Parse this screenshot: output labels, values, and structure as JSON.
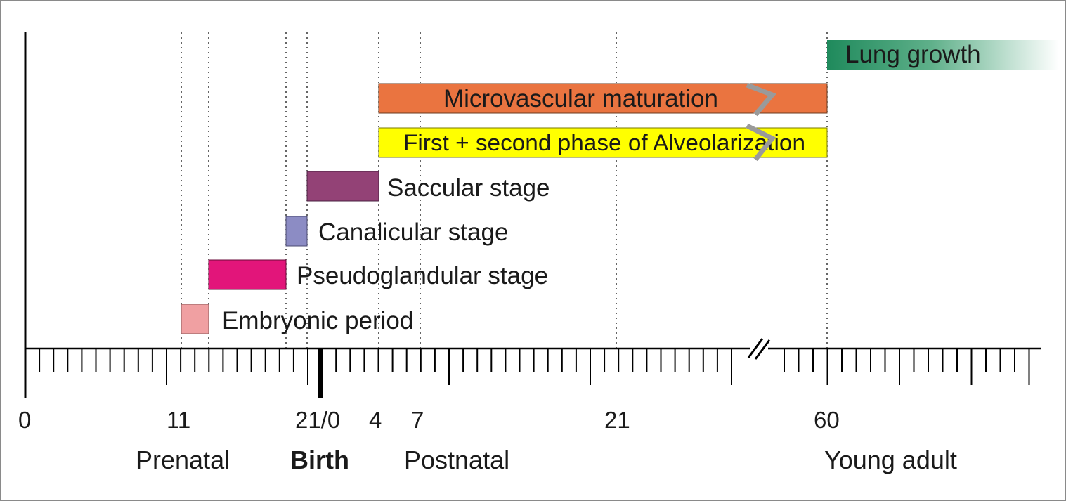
{
  "stages": [
    {
      "id": "lung-growth",
      "label": "Lung growth",
      "color": "#1f8a5c"
    },
    {
      "id": "microvascular",
      "label": "Microvascular maturation",
      "color": "#ea7440"
    },
    {
      "id": "alveolarization",
      "label": "First + second phase of Alveolarization",
      "color": "#ffff00"
    },
    {
      "id": "saccular",
      "label": "Saccular stage",
      "color": "#934276"
    },
    {
      "id": "canalicular",
      "label": "Canalicular stage",
      "color": "#8c8cc4"
    },
    {
      "id": "pseudoglandular",
      "label": "Pseudoglandular stage",
      "color": "#e2157a"
    },
    {
      "id": "embryonic",
      "label": "Embryonic period",
      "color": "#f0a0a2"
    }
  ],
  "axis": {
    "tick_labels": [
      "0",
      "11",
      "21/0",
      "4",
      "7",
      "21",
      "60"
    ],
    "periods": {
      "prenatal": "Prenatal",
      "birth": "Birth",
      "postnatal": "Postnatal",
      "young_adult": "Young adult"
    }
  }
}
